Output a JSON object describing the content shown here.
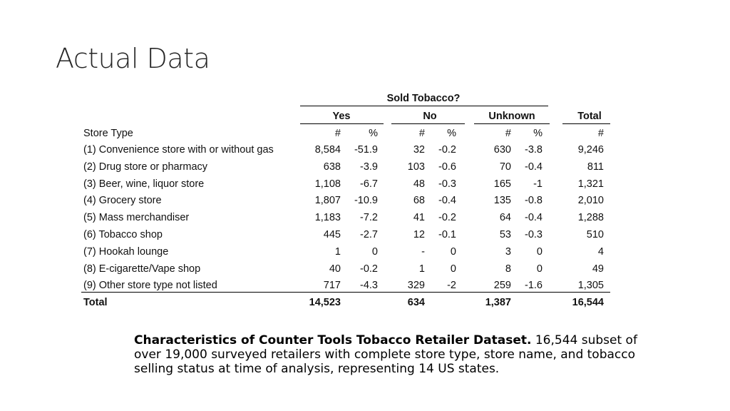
{
  "slide": {
    "title": "Actual Data"
  },
  "table": {
    "super_header": "Sold Tobacco?",
    "groups": [
      "Yes",
      "No",
      "Unknown",
      "Total"
    ],
    "row_header": "Store Type",
    "subheaders": [
      "#",
      "%",
      "#",
      "%",
      "#",
      "%",
      "#"
    ],
    "rows": [
      {
        "label": "(1) Convenience store with or without gas",
        "values": [
          "8,584",
          "-51.9",
          "32",
          "-0.2",
          "630",
          "-3.8",
          "9,246"
        ]
      },
      {
        "label": "(2) Drug store or pharmacy",
        "values": [
          "638",
          "-3.9",
          "103",
          "-0.6",
          "70",
          "-0.4",
          "811"
        ]
      },
      {
        "label": "(3) Beer, wine, liquor store",
        "values": [
          "1,108",
          "-6.7",
          "48",
          "-0.3",
          "165",
          "-1",
          "1,321"
        ]
      },
      {
        "label": "(4) Grocery store",
        "values": [
          "1,807",
          "-10.9",
          "68",
          "-0.4",
          "135",
          "-0.8",
          "2,010"
        ]
      },
      {
        "label": "(5) Mass merchandiser",
        "values": [
          "1,183",
          "-7.2",
          "41",
          "-0.2",
          "64",
          "-0.4",
          "1,288"
        ]
      },
      {
        "label": "(6) Tobacco shop",
        "values": [
          "445",
          "-2.7",
          "12",
          "-0.1",
          "53",
          "-0.3",
          "510"
        ]
      },
      {
        "label": "(7) Hookah lounge",
        "values": [
          "1",
          "0",
          "-",
          "0",
          "3",
          "0",
          "4"
        ]
      },
      {
        "label": "(8) E-cigarette/Vape shop",
        "values": [
          "40",
          "-0.2",
          "1",
          "0",
          "8",
          "0",
          "49"
        ]
      },
      {
        "label": "(9) Other store type not listed",
        "values": [
          "717",
          "-4.3",
          "329",
          "-2",
          "259",
          "-1.6",
          "1,305"
        ]
      }
    ],
    "total": {
      "label": "Total",
      "values": [
        "14,523",
        "",
        "634",
        "",
        "1,387",
        "",
        "16,544"
      ]
    }
  },
  "caption": {
    "bold": "Characteristics of Counter Tools Tobacco Retailer Dataset.",
    "text": " 16,544 subset of over 19,000 surveyed retailers with complete store type, store name, and tobacco selling status at time of analysis, representing 14 US states."
  }
}
